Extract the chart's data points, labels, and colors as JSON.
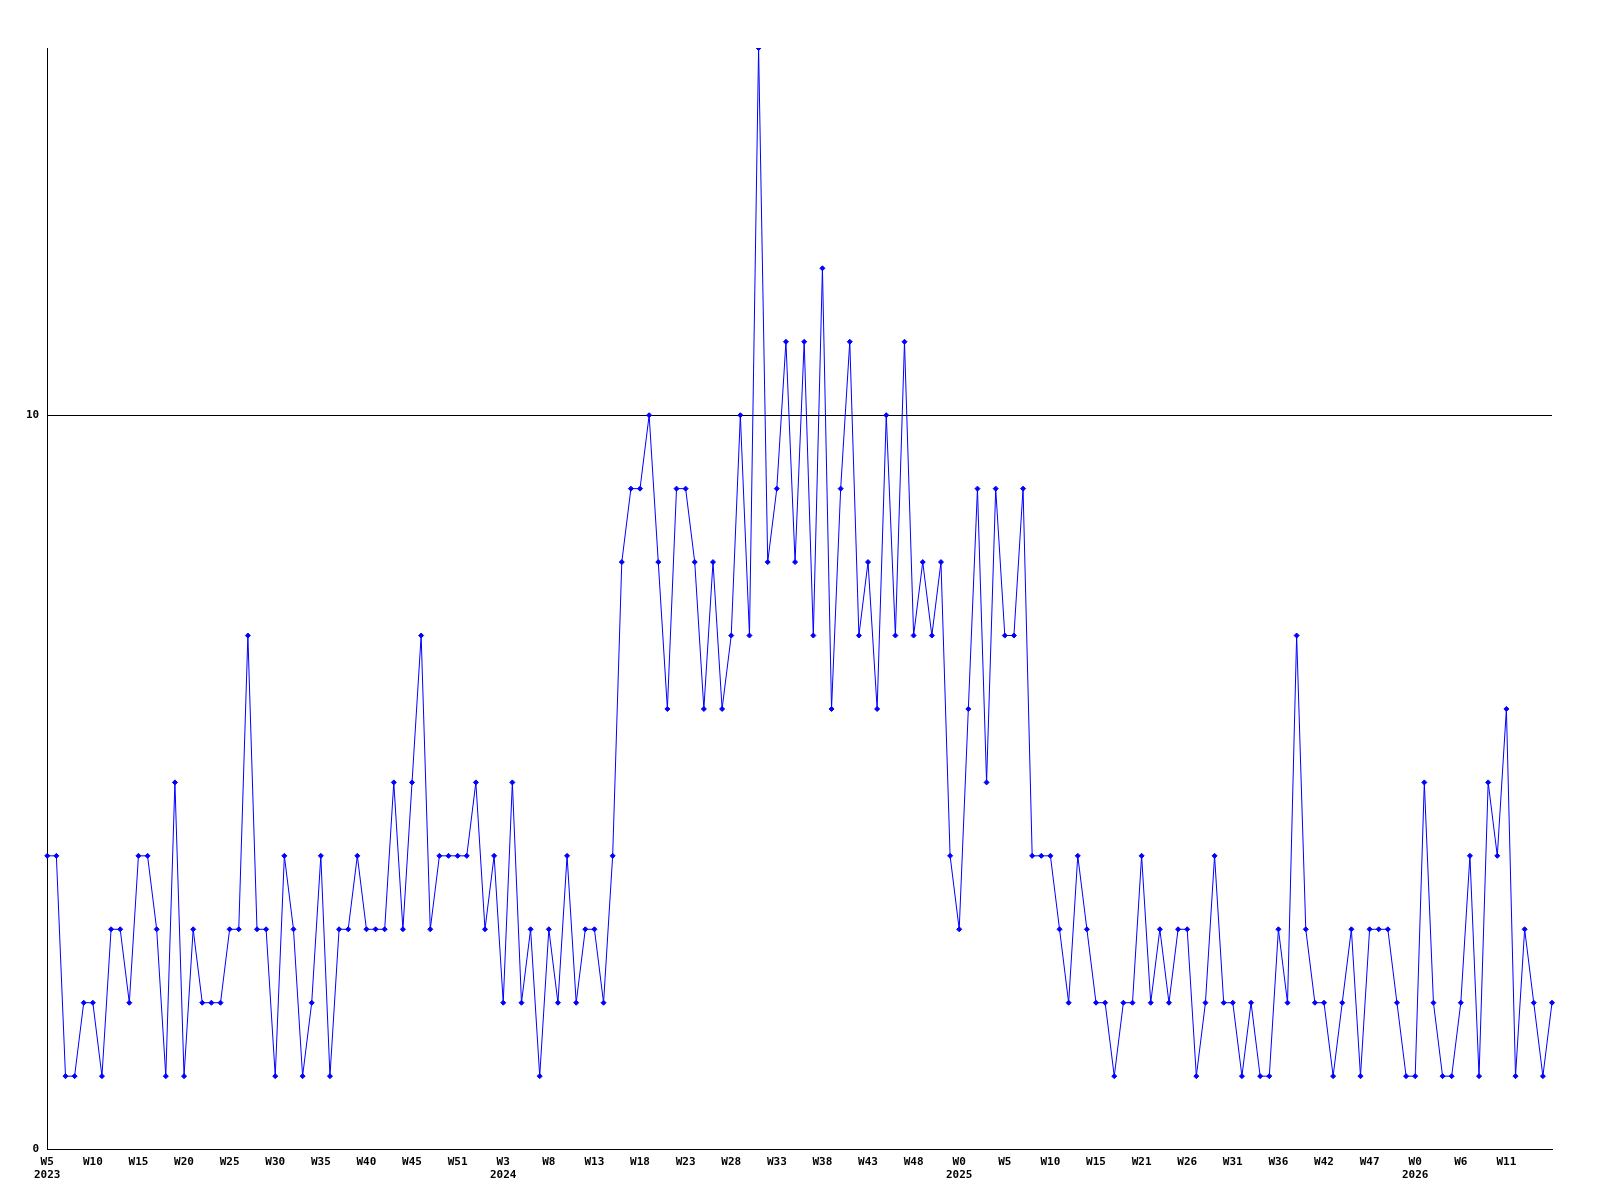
{
  "chart_data": {
    "type": "line",
    "categories": [
      "W5\n2023",
      null,
      null,
      null,
      null,
      "W10",
      null,
      null,
      null,
      null,
      "W15",
      null,
      null,
      null,
      null,
      "W20",
      null,
      null,
      null,
      null,
      "W25",
      null,
      null,
      null,
      null,
      "W30",
      null,
      null,
      null,
      null,
      "W35",
      null,
      null,
      null,
      null,
      "W40",
      null,
      null,
      null,
      null,
      "W45",
      null,
      null,
      null,
      null,
      "W51",
      null,
      null,
      null,
      null,
      "W3\n2024",
      null,
      null,
      null,
      null,
      "W8",
      null,
      null,
      null,
      null,
      "W13",
      null,
      null,
      null,
      null,
      "W18",
      null,
      null,
      null,
      null,
      "W23",
      null,
      null,
      null,
      null,
      "W28",
      null,
      null,
      null,
      null,
      "W33",
      null,
      null,
      null,
      null,
      "W38",
      null,
      null,
      null,
      null,
      "W43",
      null,
      null,
      null,
      null,
      "W48",
      null,
      null,
      null,
      null,
      "W0\n2025",
      null,
      null,
      null,
      null,
      "W5",
      null,
      null,
      null,
      null,
      "W10",
      null,
      null,
      null,
      null,
      "W15",
      null,
      null,
      null,
      null,
      "W21",
      null,
      null,
      null,
      null,
      "W26",
      null,
      null,
      null,
      null,
      "W31",
      null,
      null,
      null,
      null,
      "W36",
      null,
      null,
      null,
      null,
      "W42",
      null,
      null,
      null,
      null,
      "W47",
      null,
      null,
      null,
      null,
      "W0\n2026",
      null,
      null,
      null,
      null,
      "W6",
      null,
      null,
      null,
      null,
      "W11",
      null,
      null,
      null,
      null,
      null
    ],
    "series": [
      {
        "color": "#0000ff",
        "values": [
          4,
          4,
          1,
          1,
          2,
          2,
          1,
          3,
          3,
          2,
          4,
          4,
          3,
          1,
          5,
          1,
          3,
          2,
          2,
          2,
          3,
          3,
          7,
          3,
          3,
          1,
          4,
          3,
          1,
          2,
          4,
          1,
          3,
          3,
          4,
          3,
          3,
          3,
          5,
          3,
          5,
          7,
          3,
          4,
          4,
          4,
          4,
          5,
          3,
          4,
          2,
          5,
          2,
          3,
          1,
          3,
          2,
          4,
          2,
          3,
          3,
          2,
          4,
          8,
          9,
          9,
          10,
          8,
          6,
          9,
          9,
          8,
          6,
          8,
          6,
          7,
          10,
          7,
          15,
          8,
          9,
          11,
          8,
          11,
          7,
          12,
          6,
          9,
          11,
          7,
          8,
          6,
          10,
          7,
          11,
          7,
          8,
          7,
          8,
          4,
          3,
          6,
          9,
          5,
          9,
          7,
          7,
          9,
          4,
          4,
          4,
          3,
          2,
          4,
          3,
          2,
          2,
          1,
          2,
          2,
          4,
          2,
          3,
          2,
          3,
          3,
          1,
          2,
          4,
          2,
          2,
          1,
          2,
          1,
          1,
          3,
          2,
          7,
          3,
          2,
          2,
          1,
          2,
          3,
          1,
          3,
          3,
          3,
          2,
          1,
          1,
          5,
          2,
          1,
          1,
          2,
          4,
          1,
          5,
          4,
          6,
          1,
          3,
          2,
          1,
          2
        ]
      }
    ],
    "ylim": [
      0,
      15
    ],
    "yticks": [
      0,
      10
    ],
    "grid": "y",
    "marker": "diamond",
    "line_style": "solid",
    "legend": false
  }
}
